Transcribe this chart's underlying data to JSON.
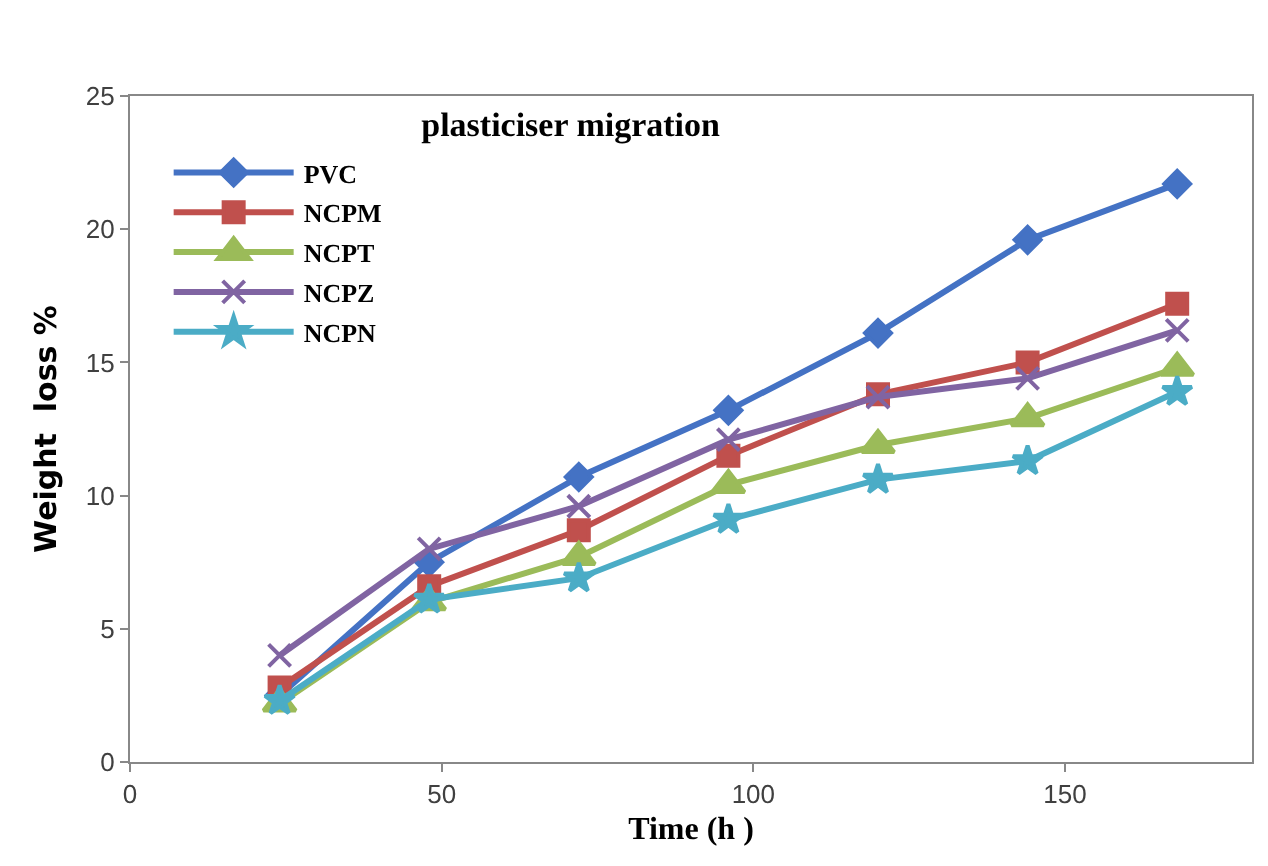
{
  "chart_data": {
    "type": "line",
    "title": "plasticiser migration",
    "xlabel": "Time (h )",
    "ylabel": "Weight  loss %",
    "x": [
      24,
      48,
      72,
      96,
      120,
      144,
      168
    ],
    "series": [
      {
        "name": "PVC",
        "color": "#4472c4",
        "marker": "diamond",
        "values": [
          2.5,
          7.5,
          10.7,
          13.2,
          16.1,
          19.6,
          21.7
        ]
      },
      {
        "name": "NCPM",
        "color": "#c0504d",
        "marker": "square",
        "values": [
          2.8,
          6.6,
          8.7,
          11.5,
          13.8,
          15.0,
          17.2
        ]
      },
      {
        "name": "NCPT",
        "color": "#9bbb59",
        "marker": "triangle",
        "values": [
          2.2,
          6.0,
          7.7,
          10.4,
          11.9,
          12.9,
          14.8
        ]
      },
      {
        "name": "NCPZ",
        "color": "#8064a2",
        "marker": "cross",
        "values": [
          4.0,
          8.0,
          9.6,
          12.1,
          13.7,
          14.4,
          16.2
        ]
      },
      {
        "name": "NCPN",
        "color": "#4bacc6",
        "marker": "star",
        "values": [
          2.3,
          6.1,
          6.9,
          9.1,
          10.6,
          11.3,
          13.9
        ]
      }
    ],
    "xlim": [
      0,
      180
    ],
    "xticks": [
      0,
      50,
      100,
      150
    ],
    "ylim": [
      0,
      25
    ],
    "yticks": [
      0,
      5,
      10,
      15,
      20,
      25
    ],
    "grid": false,
    "legend": "top left",
    "line_style": "solid"
  }
}
